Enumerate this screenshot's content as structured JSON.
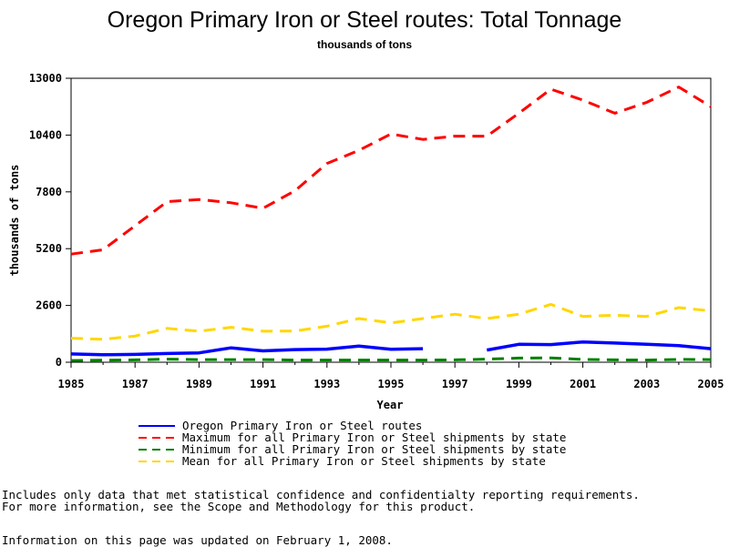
{
  "chart_data": {
    "type": "line",
    "title": "Oregon Primary Iron or Steel routes: Total Tonnage",
    "subtitle": "thousands of tons",
    "xlabel": "Year",
    "ylabel": "thousands of tons",
    "xlim": [
      1985,
      2005
    ],
    "ylim": [
      0,
      13000
    ],
    "x_ticks": [
      1985,
      1987,
      1989,
      1991,
      1993,
      1995,
      1997,
      1999,
      2001,
      2003,
      2005
    ],
    "y_ticks": [
      0,
      2600,
      5200,
      7800,
      10400,
      13000
    ],
    "x": [
      1985,
      1986,
      1987,
      1988,
      1989,
      1990,
      1991,
      1992,
      1993,
      1994,
      1995,
      1996,
      1997,
      1998,
      1999,
      2000,
      2001,
      2002,
      2003,
      2004,
      2005
    ],
    "series": [
      {
        "name": "Oregon Primary Iron or Steel routes",
        "color": "#0000ff",
        "dash": "solid",
        "values": [
          380,
          340,
          360,
          400,
          430,
          660,
          520,
          580,
          600,
          740,
          590,
          620,
          null,
          560,
          820,
          810,
          930,
          880,
          820,
          760,
          620
        ]
      },
      {
        "name": "Maximum for all Primary Iron or Steel shipments by state",
        "color": "#ff0000",
        "dash": "dashed",
        "values": [
          4950,
          5150,
          6250,
          7350,
          7450,
          7300,
          7050,
          7850,
          9100,
          9700,
          10450,
          10200,
          10350,
          10350,
          11400,
          12500,
          12000,
          11400,
          11900,
          12600,
          11700
        ]
      },
      {
        "name": "Minimum for all Primary Iron or Steel shipments by state",
        "color": "#008000",
        "dash": "dashed",
        "values": [
          80,
          90,
          110,
          140,
          120,
          120,
          120,
          100,
          100,
          100,
          100,
          100,
          110,
          140,
          190,
          200,
          130,
          110,
          100,
          130,
          120
        ]
      },
      {
        "name": "Mean for all Primary Iron or Steel shipments by state",
        "color": "#ffd700",
        "dash": "dashed",
        "values": [
          1100,
          1050,
          1200,
          1550,
          1420,
          1600,
          1420,
          1430,
          1650,
          2000,
          1800,
          2000,
          2200,
          2000,
          2200,
          2650,
          2100,
          2150,
          2100,
          2500,
          2350
        ]
      }
    ],
    "grid": false,
    "legend_position": "bottom"
  },
  "notes": {
    "line1": "Includes only data that met statistical confidence and confidentialty reporting requirements.",
    "line2": "For more information, see the Scope and Methodology for this product.",
    "line3": "Information on this page was updated on February 1, 2008."
  }
}
